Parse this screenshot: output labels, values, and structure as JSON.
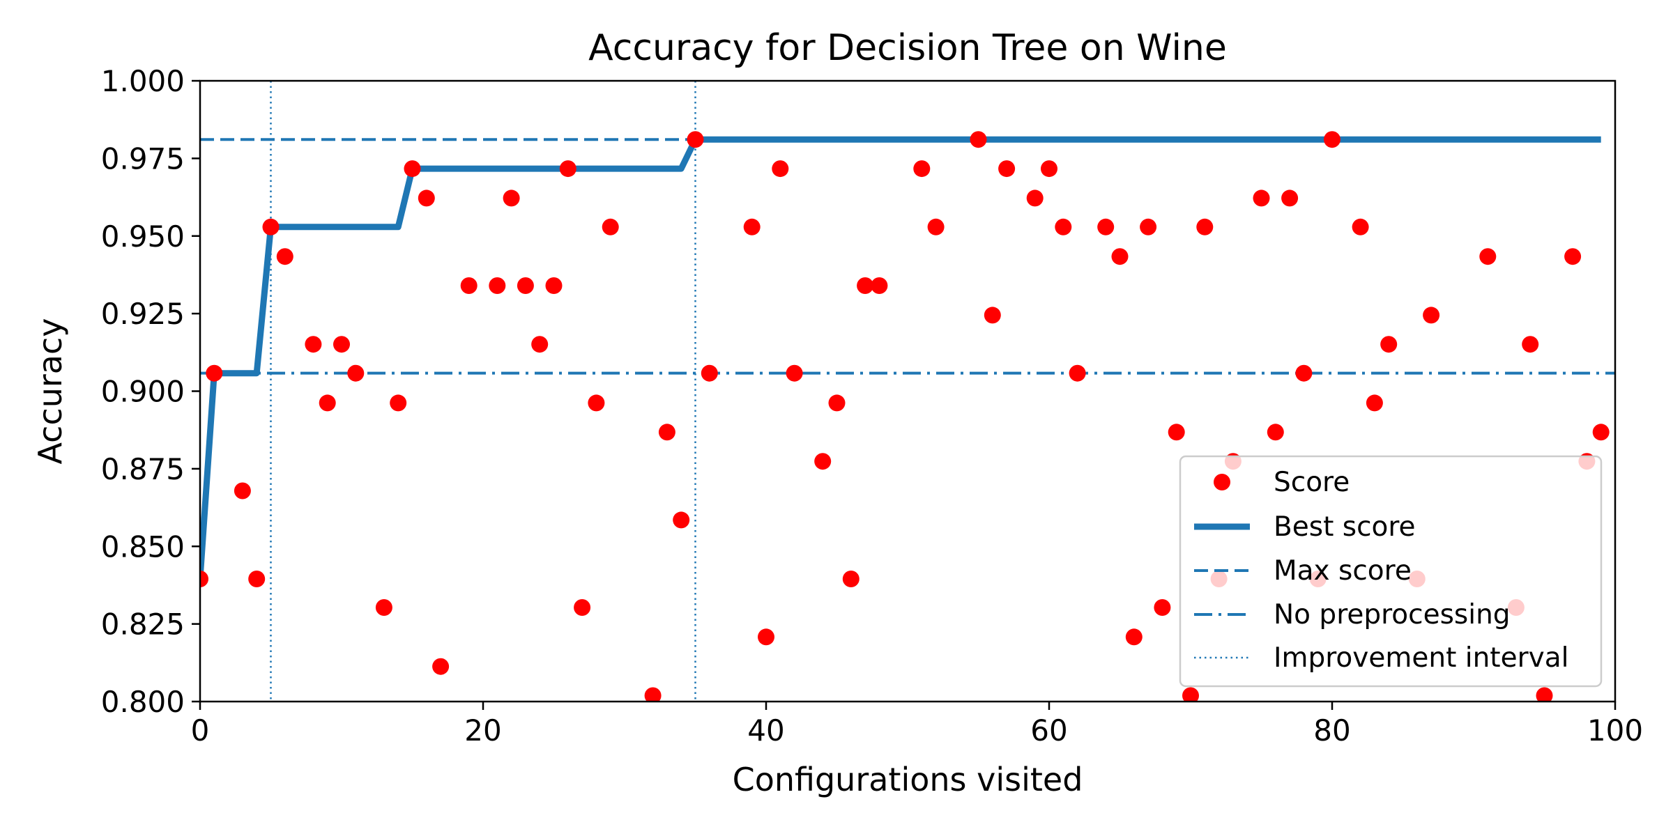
{
  "chart_data": {
    "type": "scatter",
    "title": "Accuracy for Decision Tree on Wine",
    "xlabel": "Configurations visited",
    "ylabel": "Accuracy",
    "xlim": [
      0,
      100
    ],
    "ylim": [
      0.8,
      1.0
    ],
    "xticks": [
      0,
      20,
      40,
      60,
      80,
      100
    ],
    "xtick_labels": [
      "0",
      "20",
      "40",
      "60",
      "80",
      "100"
    ],
    "yticks": [
      0.8,
      0.825,
      0.85,
      0.875,
      0.9,
      0.925,
      0.95,
      0.975,
      1.0
    ],
    "ytick_labels": [
      "0.800",
      "0.825",
      "0.850",
      "0.875",
      "0.900",
      "0.925",
      "0.950",
      "0.975",
      "1.000"
    ],
    "grid": false,
    "legend_position": "lower-right",
    "colors": {
      "score": "#ff0000",
      "lines": "#1f77b4"
    },
    "series": [
      {
        "name": "Score",
        "kind": "scatter",
        "x": [
          0,
          1,
          3,
          4,
          5,
          6,
          8,
          9,
          10,
          11,
          13,
          14,
          15,
          16,
          17,
          19,
          21,
          22,
          23,
          24,
          25,
          26,
          27,
          28,
          29,
          32,
          33,
          34,
          35,
          36,
          39,
          40,
          41,
          42,
          44,
          45,
          46,
          47,
          48,
          51,
          52,
          55,
          56,
          57,
          59,
          60,
          61,
          62,
          64,
          65,
          66,
          67,
          68,
          69,
          70,
          71,
          72,
          73,
          75,
          76,
          77,
          78,
          79,
          80,
          82,
          83,
          84,
          86,
          87,
          91,
          93,
          94,
          95,
          97,
          98,
          99
        ],
        "y": [
          0.8395,
          0.9058,
          0.8679,
          0.8395,
          0.9529,
          0.9434,
          0.9151,
          0.8962,
          0.9151,
          0.9058,
          0.8303,
          0.8962,
          0.9717,
          0.9622,
          0.8113,
          0.934,
          0.934,
          0.9622,
          0.934,
          0.9151,
          0.934,
          0.9717,
          0.8303,
          0.8962,
          0.9529,
          0.8019,
          0.8868,
          0.8585,
          0.9811,
          0.9058,
          0.9529,
          0.8208,
          0.9717,
          0.9058,
          0.8774,
          0.8962,
          0.8395,
          0.934,
          0.934,
          0.9717,
          0.9529,
          0.9811,
          0.9245,
          0.9717,
          0.9622,
          0.9717,
          0.9529,
          0.9058,
          0.9529,
          0.9434,
          0.8208,
          0.9529,
          0.8303,
          0.8868,
          0.8019,
          0.9529,
          0.8395,
          0.8774,
          0.9622,
          0.8868,
          0.9622,
          0.9058,
          0.8395,
          0.9811,
          0.9529,
          0.8962,
          0.9151,
          0.8395,
          0.9245,
          0.9434,
          0.8303,
          0.9151,
          0.8019,
          0.9434,
          0.8774,
          0.8868
        ]
      },
      {
        "name": "Best score",
        "kind": "step-line",
        "x": [
          0,
          1,
          4,
          5,
          14,
          15,
          34,
          35,
          99
        ],
        "y": [
          0.8395,
          0.9058,
          0.9058,
          0.9529,
          0.9529,
          0.9717,
          0.9717,
          0.9811,
          0.9811
        ]
      },
      {
        "name": "Max score",
        "kind": "hline",
        "y": 0.9811,
        "xmax": 35
      },
      {
        "name": "No preprocessing",
        "kind": "hline",
        "y": 0.9058
      },
      {
        "name": "Improvement interval",
        "kind": "vlines",
        "x": [
          5,
          35
        ]
      }
    ]
  }
}
